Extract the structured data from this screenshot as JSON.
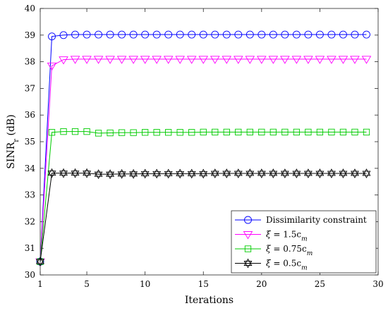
{
  "chart_data": {
    "type": "line",
    "title": "",
    "xlabel": "Iterations",
    "ylabel_main": "SINR",
    "ylabel_sub": "r",
    "ylabel_unit": " (dB)",
    "xlim": [
      1,
      30
    ],
    "ylim": [
      30,
      40
    ],
    "xticks": [
      1,
      5,
      10,
      15,
      20,
      25,
      30
    ],
    "yticks": [
      30,
      31,
      32,
      33,
      34,
      35,
      36,
      37,
      38,
      39,
      40
    ],
    "grid": false,
    "legend_position": "bottom-right",
    "x": [
      1,
      2,
      3,
      4,
      5,
      6,
      7,
      8,
      9,
      10,
      11,
      12,
      13,
      14,
      15,
      16,
      17,
      18,
      19,
      20,
      21,
      22,
      23,
      24,
      25,
      26,
      27,
      28,
      29
    ],
    "series": [
      {
        "name_parts": [
          "Dissimilarity constraint",
          "",
          "",
          ""
        ],
        "color": "#0000ff",
        "marker": "circle",
        "values": [
          30.5,
          38.95,
          39.0,
          39.02,
          39.02,
          39.02,
          39.02,
          39.02,
          39.02,
          39.02,
          39.02,
          39.02,
          39.02,
          39.02,
          39.02,
          39.02,
          39.02,
          39.02,
          39.02,
          39.02,
          39.02,
          39.02,
          39.02,
          39.02,
          39.02,
          39.02,
          39.02,
          39.02,
          39.02
        ]
      },
      {
        "name_parts": [
          "ξ",
          " = 1.5c",
          "m",
          ""
        ],
        "color": "#ff00ff",
        "marker": "triangle-down",
        "values": [
          30.5,
          37.85,
          38.08,
          38.1,
          38.1,
          38.1,
          38.1,
          38.1,
          38.1,
          38.1,
          38.1,
          38.1,
          38.1,
          38.1,
          38.1,
          38.1,
          38.1,
          38.1,
          38.1,
          38.1,
          38.1,
          38.1,
          38.1,
          38.1,
          38.1,
          38.1,
          38.1,
          38.1,
          38.1
        ]
      },
      {
        "name_parts": [
          "ξ",
          " = 0.75c",
          "m",
          ""
        ],
        "color": "#00cc00",
        "marker": "square",
        "values": [
          30.5,
          35.35,
          35.38,
          35.38,
          35.38,
          35.32,
          35.33,
          35.34,
          35.34,
          35.35,
          35.35,
          35.35,
          35.35,
          35.35,
          35.36,
          35.36,
          35.36,
          35.36,
          35.36,
          35.36,
          35.36,
          35.36,
          35.36,
          35.36,
          35.36,
          35.36,
          35.36,
          35.36,
          35.36
        ]
      },
      {
        "name_parts": [
          "ξ",
          " = 0.5c",
          "m",
          ""
        ],
        "color": "#000000",
        "marker": "hexagram",
        "values": [
          30.5,
          33.82,
          33.82,
          33.82,
          33.82,
          33.78,
          33.78,
          33.79,
          33.79,
          33.8,
          33.8,
          33.8,
          33.8,
          33.8,
          33.8,
          33.81,
          33.81,
          33.81,
          33.81,
          33.81,
          33.81,
          33.81,
          33.81,
          33.81,
          33.81,
          33.81,
          33.81,
          33.81,
          33.81
        ]
      }
    ]
  }
}
